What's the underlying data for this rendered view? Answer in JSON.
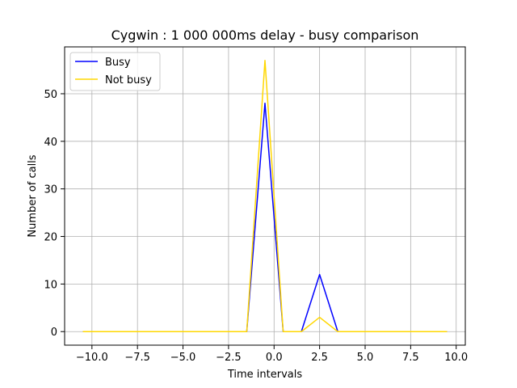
{
  "chart_data": {
    "type": "line",
    "title": "Cygwin : 1 000 000ms delay - busy comparison",
    "xlabel": "Time intervals",
    "ylabel": "Number of calls",
    "xlim": [
      -11.5,
      10.5
    ],
    "ylim": [
      -2.85,
      59.85
    ],
    "xticks": [
      -10.0,
      -7.5,
      -5.0,
      -2.5,
      0.0,
      2.5,
      5.0,
      7.5,
      10.0
    ],
    "xtick_labels": [
      "−10.0",
      "−7.5",
      "−5.0",
      "−2.5",
      "0.0",
      "2.5",
      "5.0",
      "7.5",
      "10.0"
    ],
    "yticks": [
      0,
      10,
      20,
      30,
      40,
      50
    ],
    "ytick_labels": [
      "0",
      "10",
      "20",
      "30",
      "40",
      "50"
    ],
    "grid": true,
    "legend_position": "top-left",
    "x": [
      -10.5,
      -9.5,
      -8.5,
      -7.5,
      -6.5,
      -5.5,
      -4.5,
      -3.5,
      -2.5,
      -1.5,
      -0.5,
      0.5,
      1.5,
      2.5,
      3.5,
      4.5,
      5.5,
      6.5,
      7.5,
      8.5,
      9.5
    ],
    "series": [
      {
        "name": "Busy",
        "color": "#0000ff",
        "values": [
          0,
          0,
          0,
          0,
          0,
          0,
          0,
          0,
          0,
          0,
          48,
          0,
          0,
          12,
          0,
          0,
          0,
          0,
          0,
          0,
          0
        ]
      },
      {
        "name": "Not busy",
        "color": "#ffd700",
        "values": [
          0,
          0,
          0,
          0,
          0,
          0,
          0,
          0,
          0,
          0,
          57,
          0,
          0,
          3,
          0,
          0,
          0,
          0,
          0,
          0,
          0
        ]
      }
    ]
  }
}
